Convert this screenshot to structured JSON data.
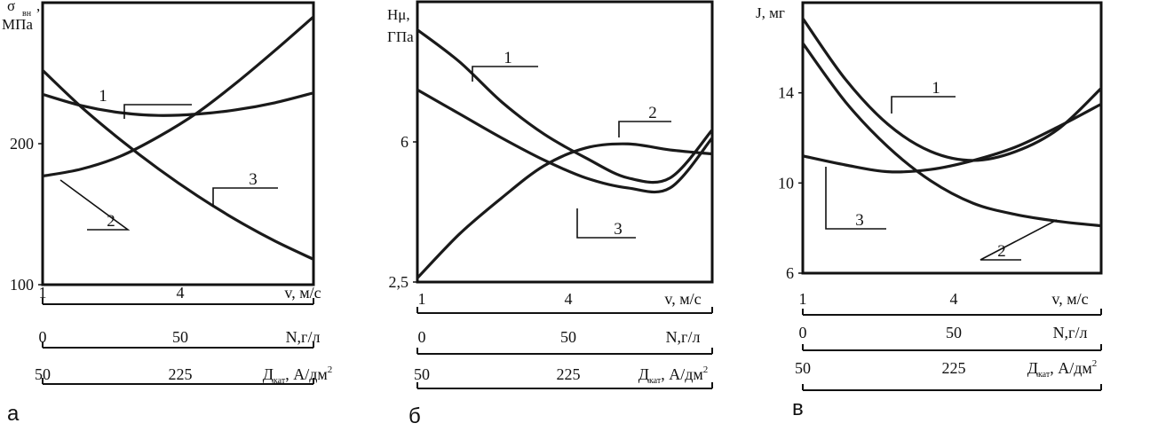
{
  "chart_data": [
    {
      "type": "line",
      "panel_label": "а",
      "ylabel": "σвн, МПа",
      "ylabel_lines": [
        "σ",
        "вн",
        ",",
        "МПа"
      ],
      "ylim": [
        100,
        300
      ],
      "yticks": [
        "100",
        "200"
      ],
      "ytick_values": [
        100,
        200
      ],
      "x": [
        1,
        2,
        3,
        4,
        5,
        6,
        7,
        8
      ],
      "series": [
        {
          "name": "1",
          "values": [
            235,
            227,
            222,
            220,
            221,
            224,
            229,
            236
          ]
        },
        {
          "name": "2",
          "values": [
            177,
            182,
            191,
            205,
            222,
            243,
            266,
            290
          ]
        },
        {
          "name": "3",
          "values": [
            252,
            226,
            203,
            182,
            163,
            146,
            131,
            118
          ]
        }
      ],
      "x_scales": [
        {
          "label": "v, м/с",
          "ticks": [
            "1",
            "4"
          ]
        },
        {
          "label": "N,г/л",
          "ticks": [
            "0",
            "50"
          ]
        },
        {
          "label": "Дкат, А/дм²",
          "label_main": "Д",
          "label_sub": "кат",
          "label_tail": ", А/дм",
          "label_sup": "2",
          "ticks": [
            "50",
            "225"
          ]
        }
      ]
    },
    {
      "type": "line",
      "panel_label": "б",
      "ylabel": "Hμ, ГПа",
      "ylabel_lines": [
        "Hμ,",
        "ГПа"
      ],
      "ylim": [
        2.5,
        9.5
      ],
      "yticks": [
        "2,5",
        "6"
      ],
      "ytick_values": [
        2.5,
        6
      ],
      "x": [
        1,
        2,
        3,
        4,
        5,
        6,
        7,
        8
      ],
      "series": [
        {
          "name": "1",
          "values": [
            8.8,
            8.0,
            7.0,
            6.2,
            5.6,
            5.1,
            5.1,
            6.3
          ]
        },
        {
          "name": "2",
          "values": [
            2.6,
            3.7,
            4.6,
            5.4,
            5.85,
            5.95,
            5.8,
            5.7
          ]
        },
        {
          "name": "3",
          "values": [
            7.3,
            6.7,
            6.1,
            5.55,
            5.1,
            4.85,
            4.85,
            6.1
          ]
        }
      ],
      "x_scales": [
        {
          "label": "v, м/с",
          "ticks": [
            "1",
            "4"
          ]
        },
        {
          "label": "N,г/л",
          "ticks": [
            "0",
            "50"
          ]
        },
        {
          "label": "Дкат, А/дм²",
          "label_main": "Д",
          "label_sub": "кат",
          "label_tail": ", А/дм",
          "label_sup": "2",
          "ticks": [
            "50",
            "225"
          ]
        }
      ]
    },
    {
      "type": "line",
      "panel_label": "в",
      "ylabel": "J, мг",
      "ylabel_lines": [
        "J, мг"
      ],
      "ylim": [
        6,
        18
      ],
      "yticks": [
        "6",
        "10",
        "14"
      ],
      "ytick_values": [
        6,
        10,
        14
      ],
      "x": [
        1,
        2,
        3,
        4,
        5,
        6,
        7,
        8
      ],
      "series": [
        {
          "name": "1",
          "values": [
            17.3,
            14.6,
            12.6,
            11.4,
            11.0,
            11.4,
            12.4,
            14.2
          ]
        },
        {
          "name": "2",
          "values": [
            16.2,
            13.6,
            11.6,
            10.1,
            9.1,
            8.6,
            8.3,
            8.1
          ]
        },
        {
          "name": "3",
          "values": [
            11.2,
            10.8,
            10.5,
            10.6,
            11.0,
            11.6,
            12.5,
            13.5
          ]
        }
      ],
      "x_scales": [
        {
          "label": "v, м/с",
          "ticks": [
            "1",
            "4"
          ]
        },
        {
          "label": "N,г/л",
          "ticks": [
            "0",
            "50"
          ]
        },
        {
          "label": "Дкат, А/дм²",
          "label_main": "Д",
          "label_sub": "кат",
          "label_tail": ", А/дм",
          "label_sup": "2",
          "ticks": [
            "50",
            "225"
          ]
        }
      ]
    }
  ]
}
